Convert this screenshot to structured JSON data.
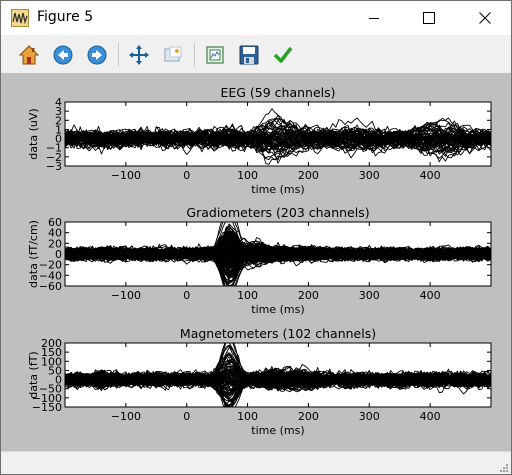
{
  "window": {
    "title": "Figure 5",
    "app_icon": "matplotlib-figure-icon",
    "controls": [
      "minimize-icon",
      "maximize-icon",
      "close-icon"
    ]
  },
  "toolbar": {
    "buttons": [
      {
        "name": "home-button",
        "icon": "home-icon"
      },
      {
        "name": "back-button",
        "icon": "arrow-left-icon"
      },
      {
        "name": "forward-button",
        "icon": "arrow-right-icon"
      },
      {
        "name": "pan-button",
        "icon": "move-arrows-icon"
      },
      {
        "name": "zoom-button",
        "icon": "zoom-rect-icon"
      },
      {
        "name": "configure-subplots-button",
        "icon": "subplots-icon"
      },
      {
        "name": "save-button",
        "icon": "floppy-disk-icon"
      },
      {
        "name": "edit-axes-button",
        "icon": "checkmark-icon"
      }
    ]
  },
  "chart_data": [
    {
      "type": "line",
      "title": "EEG (59 channels)",
      "xlabel": "time (ms)",
      "ylabel": "data (uV)",
      "xlim": [
        -200,
        500
      ],
      "ylim": [
        -3,
        4
      ],
      "xticks": [
        -100,
        0,
        100,
        200,
        300,
        400
      ],
      "xticklabels": [
        "−100",
        "0",
        "100",
        "200",
        "300",
        "400"
      ],
      "yticks": [
        -3,
        -2,
        -1,
        0,
        1,
        2,
        3,
        4
      ],
      "yticklabels": [
        "−3",
        "−2",
        "−1",
        "0",
        "1",
        "2",
        "3",
        "4"
      ],
      "n_channels": 59,
      "baseline_sd": 0.45,
      "components": [
        {
          "t": 60,
          "w": 35,
          "a": 0.6
        },
        {
          "t": 150,
          "w": 40,
          "a": 1.6
        },
        {
          "t": 260,
          "w": 60,
          "a": 0.9
        },
        {
          "t": 420,
          "w": 50,
          "a": 1.4
        }
      ],
      "color": "#000000",
      "grid": false,
      "legend": "none"
    },
    {
      "type": "line",
      "title": "Gradiometers (203 channels)",
      "xlabel": "time (ms)",
      "ylabel": "data (fT/cm)",
      "xlim": [
        -200,
        500
      ],
      "ylim": [
        -60,
        60
      ],
      "xticks": [
        -100,
        0,
        100,
        200,
        300,
        400
      ],
      "xticklabels": [
        "−100",
        "0",
        "100",
        "200",
        "300",
        "400"
      ],
      "yticks": [
        -60,
        -40,
        -20,
        0,
        20,
        40,
        60
      ],
      "yticklabels": [
        "−60",
        "−40",
        "−20",
        "0",
        "20",
        "40",
        "60"
      ],
      "n_channels": 203,
      "baseline_sd": 5,
      "components": [
        {
          "t": 70,
          "w": 18,
          "a": 55
        },
        {
          "t": 110,
          "w": 25,
          "a": 15
        },
        {
          "t": 180,
          "w": 60,
          "a": 6
        }
      ],
      "color": "#000000",
      "grid": false,
      "legend": "none"
    },
    {
      "type": "line",
      "title": "Magnetometers (102 channels)",
      "xlabel": "time (ms)",
      "ylabel": "data (fT)",
      "xlim": [
        -200,
        500
      ],
      "ylim": [
        -150,
        200
      ],
      "xticks": [
        -100,
        0,
        100,
        200,
        300,
        400
      ],
      "xticklabels": [
        "−100",
        "0",
        "100",
        "200",
        "300",
        "400"
      ],
      "yticks": [
        -150,
        -100,
        -50,
        0,
        50,
        100,
        150,
        200
      ],
      "yticklabels": [
        "−150",
        "−100",
        "−50",
        "0",
        "50",
        "100",
        "150",
        "200"
      ],
      "n_channels": 102,
      "baseline_sd": 18,
      "components": [
        {
          "t": -140,
          "w": 12,
          "a": 40
        },
        {
          "t": 70,
          "w": 18,
          "a": 150
        },
        {
          "t": 170,
          "w": 50,
          "a": 40
        }
      ],
      "color": "#000000",
      "grid": false,
      "legend": "none"
    }
  ]
}
